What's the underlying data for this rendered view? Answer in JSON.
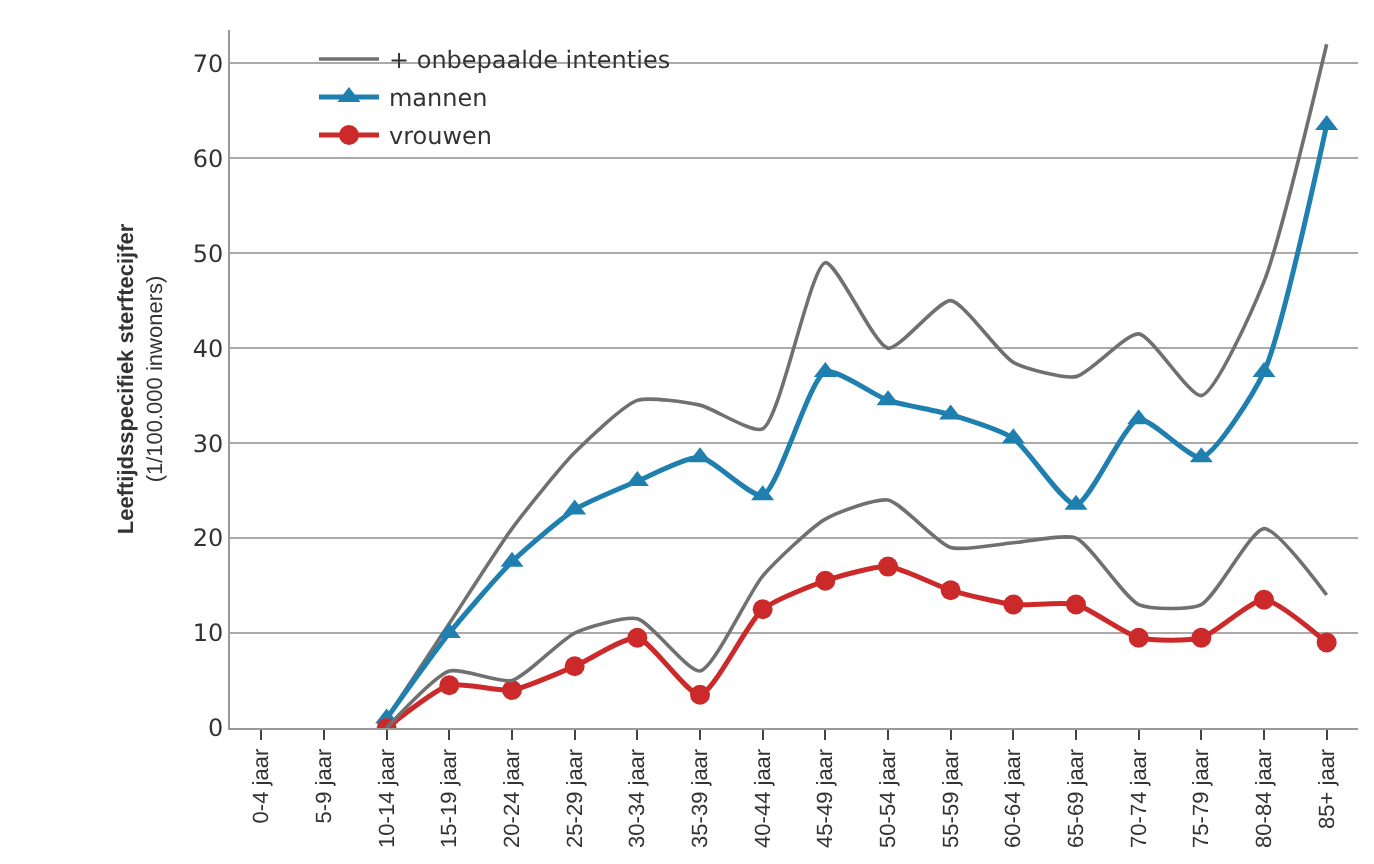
{
  "chart_data": {
    "type": "line",
    "ylabel": "Leeftijdsspecifiek sterftecijfer\n(1/100.000 inwoners)",
    "categories": [
      "0-4 jaar",
      "5-9 jaar",
      "10-14 jaar",
      "15-19 jaar",
      "20-24 jaar",
      "25-29 jaar",
      "30-34 jaar",
      "35-39 jaar",
      "40-44 jaar",
      "45-49 jaar",
      "50-54 jaar",
      "55-59 jaar",
      "60-64 jaar",
      "65-69 jaar",
      "70-74 jaar",
      "75-79 jaar",
      "80-84 jaar",
      "85+ jaar"
    ],
    "series": [
      {
        "name": "+ onbepaalde intenties",
        "color": "#707070",
        "marker": "none",
        "values": [
          null,
          null,
          1,
          11,
          21,
          29,
          34.5,
          34,
          31.5,
          49,
          40,
          45,
          38.5,
          37,
          41.5,
          35,
          47,
          72
        ]
      },
      {
        "name": "mannen",
        "color": "#1f80b0",
        "marker": "triangle",
        "values": [
          null,
          null,
          1,
          10,
          17.5,
          23,
          26,
          28.5,
          24.5,
          37.5,
          34.5,
          33,
          30.5,
          23.5,
          32.5,
          28.5,
          37.5,
          63.5
        ]
      },
      {
        "name": "vrouwen",
        "color": "#cc2a2a",
        "marker": "circle",
        "values": [
          null,
          null,
          0,
          4.5,
          4,
          6.5,
          9.5,
          3.5,
          12.5,
          15.5,
          17,
          14.5,
          13,
          13,
          9.5,
          9.5,
          13.5,
          9
        ]
      },
      {
        "color": "#707070",
        "marker": "none",
        "values": [
          null,
          null,
          0,
          6,
          5,
          10,
          11.5,
          6,
          16,
          22,
          24,
          19,
          19.5,
          20,
          13,
          13,
          21,
          14
        ]
      }
    ],
    "ylim": [
      0,
      73.5
    ],
    "yticks": [
      0,
      10,
      20,
      30,
      40,
      50,
      60,
      70
    ],
    "grid": "y",
    "legend": "top left"
  }
}
